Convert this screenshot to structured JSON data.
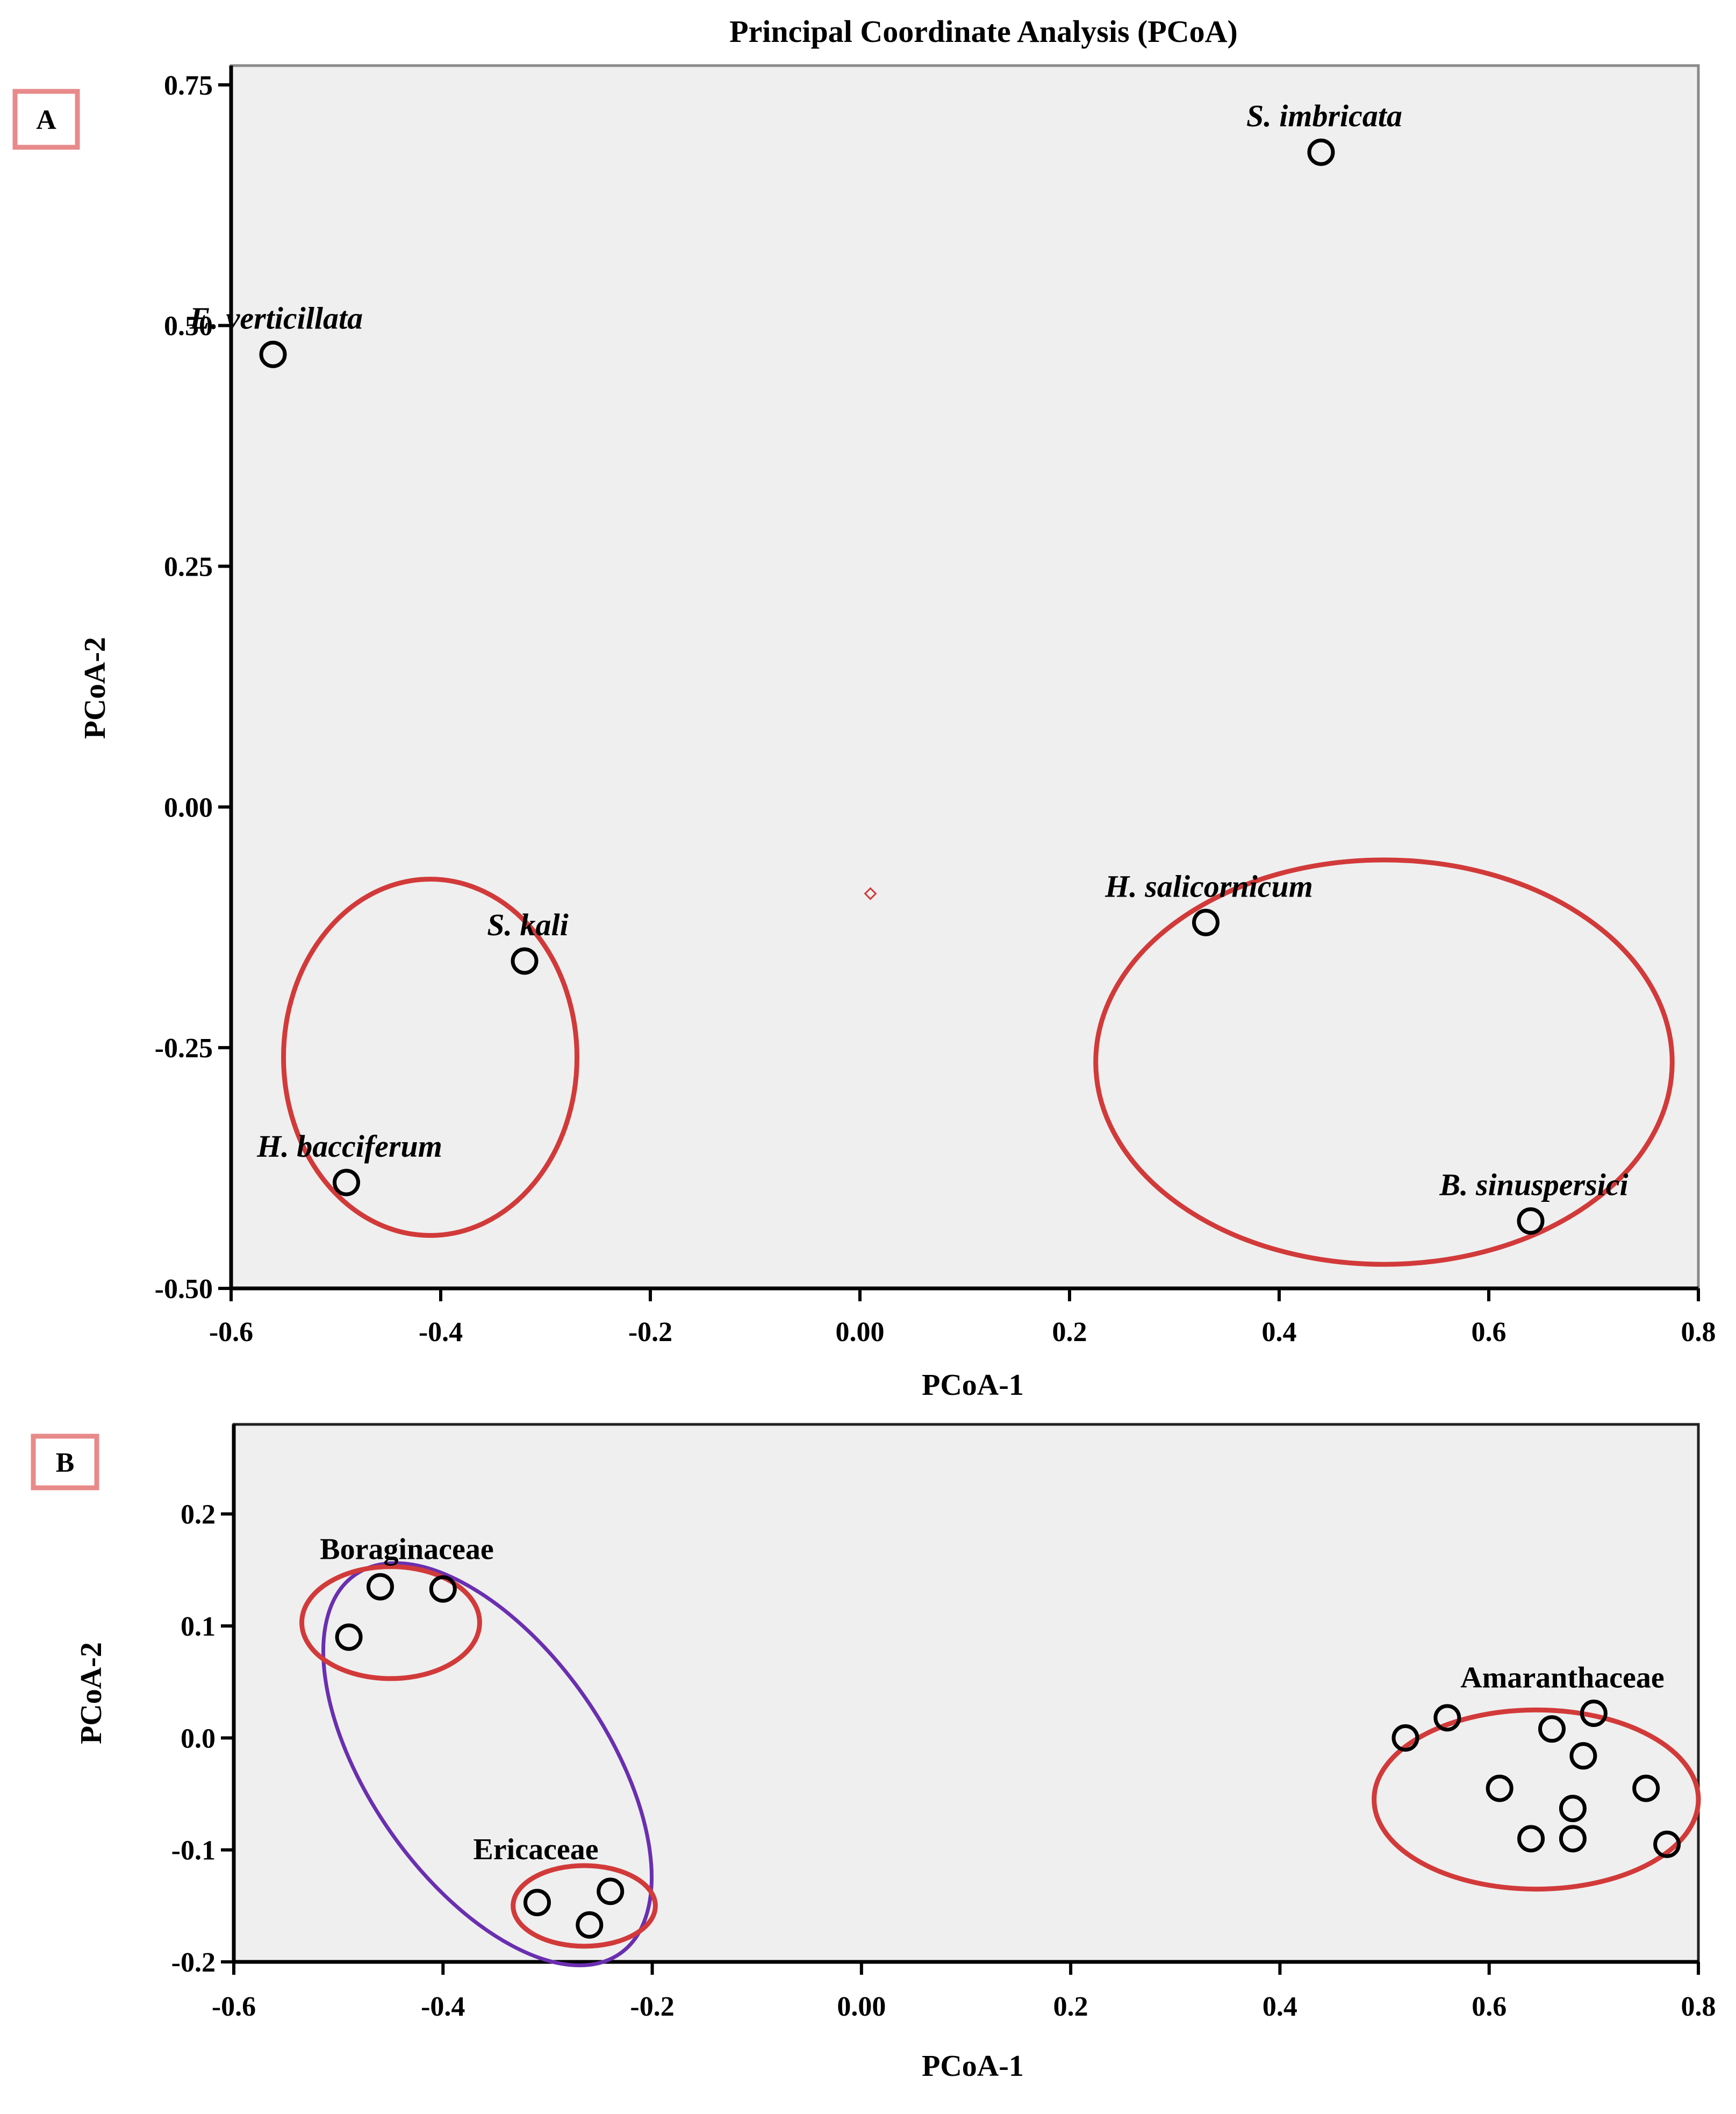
{
  "colors": {
    "plot_bg": "#efefef",
    "cluster": "#d23a3a",
    "group": "#6a2fb0",
    "panel_box": "#e88a8a"
  },
  "chart_data": [
    {
      "panel": "A",
      "type": "scatter",
      "title": "Principal Coordinate Analysis (PCoA)",
      "xlabel": "PCoA-1",
      "ylabel": "PCoA-2",
      "xlim": [
        -0.6,
        0.8
      ],
      "ylim": [
        -0.5,
        0.77
      ],
      "xticks": [
        {
          "v": -0.6,
          "label": "-0.6"
        },
        {
          "v": -0.4,
          "label": "-0.4"
        },
        {
          "v": -0.2,
          "label": "-0.2"
        },
        {
          "v": 0.0,
          "label": "0.00"
        },
        {
          "v": 0.2,
          "label": "0.2"
        },
        {
          "v": 0.4,
          "label": "0.4"
        },
        {
          "v": 0.6,
          "label": "0.6"
        },
        {
          "v": 0.8,
          "label": "0.8"
        }
      ],
      "yticks": [
        {
          "v": 0.75,
          "label": "0.75"
        },
        {
          "v": 0.5,
          "label": "0.50"
        },
        {
          "v": 0.25,
          "label": "0.25"
        },
        {
          "v": 0.0,
          "label": "0.00"
        },
        {
          "v": -0.25,
          "label": "-0.25"
        },
        {
          "v": -0.5,
          "label": "-0.50"
        }
      ],
      "points": [
        {
          "name": "S. imbricata",
          "x": 0.44,
          "y": 0.68
        },
        {
          "name": "E. verticillata",
          "x": -0.56,
          "y": 0.47
        },
        {
          "name": "H. salicornicum",
          "x": 0.33,
          "y": -0.12
        },
        {
          "name": "S. kali",
          "x": -0.32,
          "y": -0.16
        },
        {
          "name": "H. bacciferum",
          "x": -0.49,
          "y": -0.39
        },
        {
          "name": "B. sinuspersici",
          "x": 0.64,
          "y": -0.43
        }
      ],
      "centroid": {
        "x": 0.01,
        "y": -0.09
      },
      "clusters": [
        {
          "cx": -0.41,
          "cy": -0.26,
          "rx": 0.14,
          "ry": 0.185
        },
        {
          "cx": 0.5,
          "cy": -0.265,
          "rx": 0.275,
          "ry": 0.21
        }
      ]
    },
    {
      "panel": "B",
      "type": "scatter",
      "title": "",
      "xlabel": "PCoA-1",
      "ylabel": "PCoA-2",
      "xlim": [
        -0.6,
        0.8
      ],
      "ylim": [
        -0.2,
        0.28
      ],
      "xticks": [
        {
          "v": -0.6,
          "label": "-0.6"
        },
        {
          "v": -0.4,
          "label": "-0.4"
        },
        {
          "v": -0.2,
          "label": "-0.2"
        },
        {
          "v": 0.0,
          "label": "0.00"
        },
        {
          "v": 0.2,
          "label": "0.2"
        },
        {
          "v": 0.4,
          "label": "0.4"
        },
        {
          "v": 0.6,
          "label": "0.6"
        },
        {
          "v": 0.8,
          "label": "0.8"
        }
      ],
      "yticks": [
        {
          "v": 0.2,
          "label": "0.2"
        },
        {
          "v": 0.1,
          "label": "0.1"
        },
        {
          "v": 0.0,
          "label": "0.0"
        },
        {
          "v": -0.1,
          "label": "-0.1"
        },
        {
          "v": -0.2,
          "label": "-0.2"
        }
      ],
      "groups": [
        {
          "family": "Boraginaceae",
          "points": [
            [
              -0.46,
              0.135
            ],
            [
              -0.4,
              0.133
            ],
            [
              -0.49,
              0.09
            ]
          ],
          "ellipse": {
            "cx": -0.45,
            "cy": 0.103,
            "rx": 0.085,
            "ry": 0.05
          }
        },
        {
          "family": "Ericaceae",
          "points": [
            [
              -0.31,
              -0.147
            ],
            [
              -0.24,
              -0.137
            ],
            [
              -0.26,
              -0.167
            ]
          ],
          "ellipse": {
            "cx": -0.265,
            "cy": -0.15,
            "rx": 0.068,
            "ry": 0.036
          }
        },
        {
          "family": "Amaranthaceae",
          "points": [
            [
              0.52,
              0.0
            ],
            [
              0.56,
              0.018
            ],
            [
              0.66,
              0.008
            ],
            [
              0.7,
              0.022
            ],
            [
              0.69,
              -0.016
            ],
            [
              0.61,
              -0.045
            ],
            [
              0.75,
              -0.045
            ],
            [
              0.68,
              -0.063
            ],
            [
              0.64,
              -0.09
            ],
            [
              0.68,
              -0.09
            ],
            [
              0.77,
              -0.095
            ]
          ],
          "ellipse": {
            "cx": 0.645,
            "cy": -0.055,
            "rx": 0.155,
            "ry": 0.08
          }
        }
      ]
    }
  ]
}
